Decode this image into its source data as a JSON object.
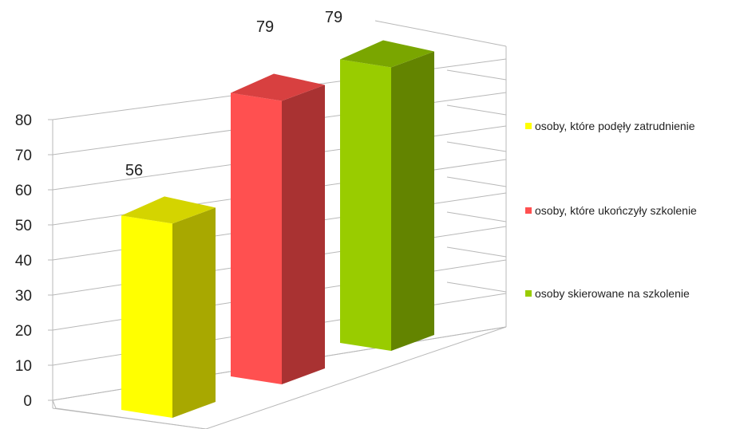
{
  "chart_data": {
    "type": "bar",
    "title": "",
    "xlabel": "",
    "ylabel": "",
    "ylim": [
      0,
      80
    ],
    "yticks": [
      "0",
      "10",
      "20",
      "30",
      "40",
      "50",
      "60",
      "70",
      "80"
    ],
    "grid": true,
    "style": "3d-column",
    "legend_position": "right",
    "series": [
      {
        "name": "osoby, które podęły zatrudnienie",
        "value": 56,
        "label": "56",
        "color": "#ffff00",
        "side_color": "#a8a800",
        "top_color": "#d4d400"
      },
      {
        "name": "osoby, które ukończyły szkolenie",
        "value": 79,
        "label": "79",
        "color": "#ff5050",
        "side_color": "#a93232",
        "top_color": "#d84040"
      },
      {
        "name": "osoby skierowane na szkolenie",
        "value": 79,
        "label": "79",
        "color": "#99cc00",
        "side_color": "#638400",
        "top_color": "#7aa600"
      }
    ]
  }
}
